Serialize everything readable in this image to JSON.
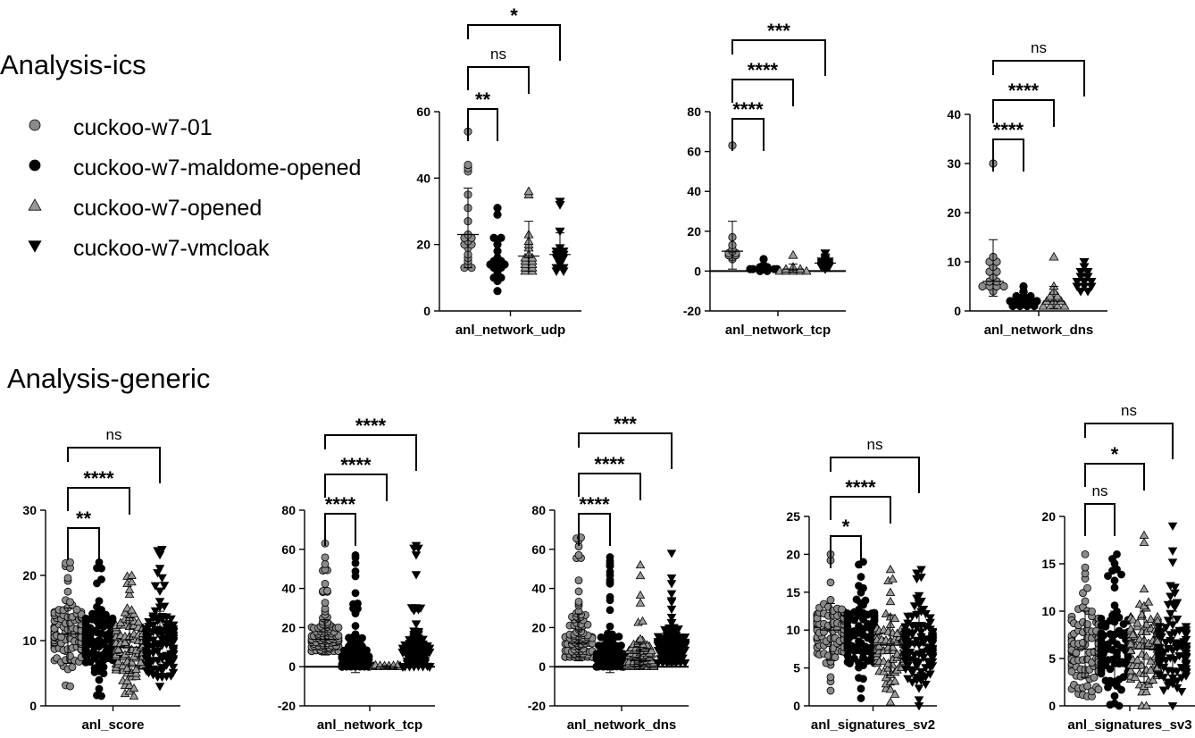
{
  "sections": {
    "ics_title": "Analysis-ics",
    "generic_title": "Analysis-generic"
  },
  "legend": [
    {
      "label": "cuckoo-w7-01",
      "marker": "circle",
      "fill": "#8a8a8a"
    },
    {
      "label": "cuckoo-w7-maldome-opened",
      "marker": "circle",
      "fill": "#000000"
    },
    {
      "label": "cuckoo-w7-opened",
      "marker": "triangle-up",
      "fill": "#9a9a9a"
    },
    {
      "label": "cuckoo-w7-vmcloak",
      "marker": "triangle-down",
      "fill": "#000000"
    }
  ],
  "chart_data": [
    {
      "type": "scatter",
      "group": "Analysis-ics",
      "xlabel": "anl_network_udp",
      "ylim": [
        0,
        60
      ],
      "yticks": [
        0,
        20,
        40,
        60
      ],
      "series": [
        {
          "values": [
            54,
            44,
            43,
            42,
            35,
            31,
            27,
            23,
            22,
            22,
            21,
            20,
            20,
            19,
            17,
            16,
            15,
            14,
            13,
            13
          ],
          "mean": 23,
          "sd": 14,
          "sd_low": 13,
          "sd_high": 37
        },
        {
          "values": [
            31,
            29,
            22,
            22,
            20,
            18,
            16,
            15,
            15,
            14,
            14,
            14,
            13,
            13,
            12,
            11,
            10,
            10,
            9,
            6
          ],
          "mean": 14,
          "sd": 8.5,
          "sd_low": 9,
          "sd_high": 22.5
        },
        {
          "values": [
            36,
            35,
            23,
            21,
            20,
            19,
            17,
            16,
            16,
            15,
            15,
            14,
            14,
            13,
            13,
            12,
            12
          ],
          "mean": 16.5,
          "sd": 11,
          "sd_low": 12,
          "sd_high": 27
        },
        {
          "values": [
            33,
            32,
            24,
            19,
            18,
            18,
            17,
            17,
            16,
            16,
            15,
            14,
            13,
            13,
            12,
            12
          ],
          "mean": 17,
          "sd": 6.5,
          "sd_low": 12.5,
          "sd_high": 23.5
        }
      ],
      "comparisons": [
        {
          "groups": [
            1,
            2
          ],
          "label": "**"
        },
        {
          "groups": [
            1,
            3
          ],
          "label": "ns"
        },
        {
          "groups": [
            1,
            4
          ],
          "label": "*"
        }
      ]
    },
    {
      "type": "scatter",
      "group": "Analysis-ics",
      "xlabel": "anl_network_tcp",
      "ylim": [
        -20,
        80
      ],
      "yticks": [
        -20,
        0,
        20,
        40,
        60,
        80
      ],
      "series": [
        {
          "values": [
            63,
            17,
            13,
            11,
            10,
            9,
            9,
            8,
            8,
            7,
            6
          ],
          "mean": 10,
          "sd": 15,
          "sd_low": 1,
          "sd_high": 25
        },
        {
          "values": [
            6,
            3,
            2,
            2,
            1,
            1,
            1,
            1,
            1,
            1,
            0,
            0
          ],
          "mean": 1.5,
          "sd": 1.5,
          "sd_low": 0.5,
          "sd_high": 3
        },
        {
          "values": [
            8,
            2,
            1,
            1,
            1,
            0,
            0,
            0,
            0,
            0
          ],
          "mean": 1,
          "sd": 2.5,
          "sd_low": -0.5,
          "sd_high": 3.5
        },
        {
          "values": [
            9,
            7,
            6,
            5,
            5,
            4,
            4,
            3,
            3,
            2,
            2,
            1
          ],
          "mean": 4,
          "sd": 2.5,
          "sd_low": 2,
          "sd_high": 6
        }
      ],
      "comparisons": [
        {
          "groups": [
            1,
            2
          ],
          "label": "****"
        },
        {
          "groups": [
            1,
            3
          ],
          "label": "****"
        },
        {
          "groups": [
            1,
            4
          ],
          "label": "***"
        }
      ]
    },
    {
      "type": "scatter",
      "group": "Analysis-ics",
      "xlabel": "anl_network_dns",
      "ylim": [
        0,
        40
      ],
      "yticks": [
        0,
        10,
        20,
        30,
        40
      ],
      "series": [
        {
          "values": [
            30,
            11,
            10,
            10,
            9,
            8,
            8,
            7,
            6,
            6,
            5,
            5,
            5,
            5,
            4
          ],
          "mean": 6,
          "sd": 7.5,
          "sd_low": 3,
          "sd_high": 14.5
        },
        {
          "values": [
            5,
            4,
            3,
            3,
            3,
            2,
            2,
            2,
            2,
            2,
            1,
            1,
            1,
            1
          ],
          "mean": 2.5,
          "sd": 1.3,
          "sd_low": 1.3,
          "sd_high": 3.8
        },
        {
          "values": [
            11,
            5,
            4,
            3,
            3,
            2,
            2,
            2,
            1,
            1,
            1,
            1
          ],
          "mean": 2,
          "sd": 3,
          "sd_low": 0.5,
          "sd_high": 5
        },
        {
          "values": [
            10,
            9,
            8,
            8,
            7,
            7,
            6,
            6,
            6,
            5,
            5,
            5,
            4,
            4
          ],
          "mean": 6.5,
          "sd": 2,
          "sd_low": 4.5,
          "sd_high": 8.5
        }
      ],
      "comparisons": [
        {
          "groups": [
            1,
            2
          ],
          "label": "****"
        },
        {
          "groups": [
            1,
            3
          ],
          "label": "****"
        },
        {
          "groups": [
            1,
            4
          ],
          "label": "ns"
        }
      ]
    },
    {
      "type": "scatter",
      "group": "Analysis-generic",
      "xlabel": "anl_score",
      "ylim": [
        0,
        30
      ],
      "yticks": [
        0,
        10,
        20,
        30
      ],
      "series": [
        {
          "spread": [
            3,
            22
          ],
          "n": 120,
          "mean": 11,
          "sd_low": 6.5,
          "sd_high": 15
        },
        {
          "spread": [
            1.5,
            22
          ],
          "n": 120,
          "mean": 10,
          "sd_low": 5.5,
          "sd_high": 14
        },
        {
          "spread": [
            1.5,
            20
          ],
          "n": 110,
          "mean": 9,
          "sd_low": 5,
          "sd_high": 13.5
        },
        {
          "spread": [
            3,
            24
          ],
          "n": 120,
          "mean": 10,
          "sd_low": 5.5,
          "sd_high": 14.5
        }
      ],
      "comparisons": [
        {
          "groups": [
            1,
            2
          ],
          "label": "**"
        },
        {
          "groups": [
            1,
            3
          ],
          "label": "****"
        },
        {
          "groups": [
            1,
            4
          ],
          "label": "ns"
        }
      ]
    },
    {
      "type": "scatter",
      "group": "Analysis-generic",
      "xlabel": "anl_network_tcp",
      "ylim": [
        -20,
        80
      ],
      "yticks": [
        -20,
        0,
        20,
        40,
        60,
        80
      ],
      "series": [
        {
          "spread": [
            8,
            63
          ],
          "n": 110,
          "mean": 14,
          "sd_low": 6,
          "sd_high": 24
        },
        {
          "spread": [
            0,
            57
          ],
          "n": 110,
          "mean": 3,
          "sd_low": -3,
          "sd_high": 12
        },
        {
          "spread": [
            0,
            1
          ],
          "n": 40,
          "mean": 0,
          "sd_low": -0.5,
          "sd_high": 0.5
        },
        {
          "spread": [
            0,
            62
          ],
          "n": 100,
          "mean": 6,
          "sd_low": 0,
          "sd_high": 16
        }
      ],
      "comparisons": [
        {
          "groups": [
            1,
            2
          ],
          "label": "****"
        },
        {
          "groups": [
            1,
            3
          ],
          "label": "****"
        },
        {
          "groups": [
            1,
            4
          ],
          "label": "****"
        }
      ]
    },
    {
      "type": "scatter",
      "group": "Analysis-generic",
      "xlabel": "anl_network_dns",
      "ylim": [
        -20,
        80
      ],
      "yticks": [
        -20,
        0,
        20,
        40,
        60,
        80
      ],
      "series": [
        {
          "spread": [
            5,
            66
          ],
          "n": 110,
          "mean": 12,
          "sd_low": 3,
          "sd_high": 27
        },
        {
          "spread": [
            0,
            56
          ],
          "n": 110,
          "mean": 3,
          "sd_low": -3,
          "sd_high": 14
        },
        {
          "spread": [
            0,
            52
          ],
          "n": 90,
          "mean": 3,
          "sd_low": -1,
          "sd_high": 12
        },
        {
          "spread": [
            2,
            58
          ],
          "n": 110,
          "mean": 10,
          "sd_low": 2,
          "sd_high": 19
        }
      ],
      "comparisons": [
        {
          "groups": [
            1,
            2
          ],
          "label": "****"
        },
        {
          "groups": [
            1,
            3
          ],
          "label": "****"
        },
        {
          "groups": [
            1,
            4
          ],
          "label": "***"
        }
      ]
    },
    {
      "type": "scatter",
      "group": "Analysis-generic",
      "xlabel": "anl_signatures_sv2",
      "ylim": [
        0,
        25
      ],
      "yticks": [
        0,
        5,
        10,
        15,
        20,
        25
      ],
      "series": [
        {
          "spread": [
            2,
            20
          ],
          "n": 100,
          "mean": 10,
          "sd_low": 6,
          "sd_high": 13.5
        },
        {
          "spread": [
            1,
            19
          ],
          "n": 110,
          "mean": 9.5,
          "sd_low": 5.5,
          "sd_high": 13.5
        },
        {
          "spread": [
            0.5,
            18
          ],
          "n": 100,
          "mean": 8,
          "sd_low": 4,
          "sd_high": 12
        },
        {
          "spread": [
            0,
            18
          ],
          "n": 110,
          "mean": 8,
          "sd_low": 4,
          "sd_high": 12.5
        }
      ],
      "comparisons": [
        {
          "groups": [
            1,
            2
          ],
          "label": "*"
        },
        {
          "groups": [
            1,
            3
          ],
          "label": "****"
        },
        {
          "groups": [
            1,
            4
          ],
          "label": "ns"
        }
      ]
    },
    {
      "type": "scatter",
      "group": "Analysis-generic",
      "xlabel": "anl_signatures_sv3",
      "ylim": [
        0,
        20
      ],
      "yticks": [
        0,
        5,
        10,
        15,
        20
      ],
      "series": [
        {
          "spread": [
            1,
            16
          ],
          "n": 100,
          "mean": 6,
          "sd_low": 3,
          "sd_high": 10
        },
        {
          "spread": [
            0,
            16
          ],
          "n": 100,
          "mean": 6,
          "sd_low": 2.5,
          "sd_high": 10
        },
        {
          "spread": [
            0,
            18
          ],
          "n": 100,
          "mean": 6,
          "sd_low": 2.5,
          "sd_high": 10
        },
        {
          "spread": [
            0,
            19
          ],
          "n": 100,
          "mean": 6,
          "sd_low": 2.5,
          "sd_high": 10
        }
      ],
      "comparisons": [
        {
          "groups": [
            1,
            2
          ],
          "label": "ns"
        },
        {
          "groups": [
            1,
            3
          ],
          "label": "*"
        },
        {
          "groups": [
            1,
            4
          ],
          "label": "ns"
        }
      ]
    }
  ]
}
